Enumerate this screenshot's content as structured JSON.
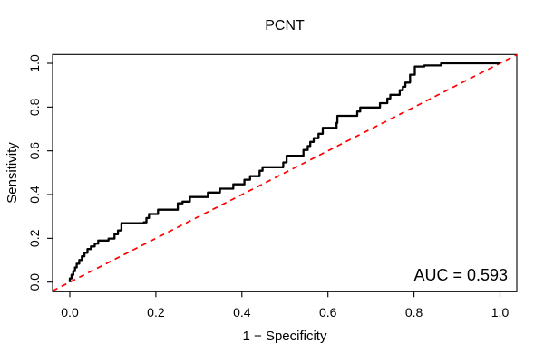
{
  "chart_data": {
    "type": "line",
    "subtype": "roc-step-curve",
    "title": "PCNT",
    "xlabel": "1 − Specificity",
    "ylabel": "Sensitivity",
    "xlim": [
      0.0,
      1.0
    ],
    "ylim": [
      0.0,
      1.0
    ],
    "grid": false,
    "legend": "none",
    "background_color": "#ffffff",
    "box_color": "#000000",
    "x_ticks": [
      "0.0",
      "0.2",
      "0.4",
      "0.6",
      "0.8",
      "1.0"
    ],
    "y_ticks": [
      "0.0",
      "0.2",
      "0.4",
      "0.6",
      "0.8",
      "1.0"
    ],
    "annotation": "AUC = 0.593",
    "auc": 0.593,
    "series": [
      {
        "name": "roc-curve",
        "color": "#000000",
        "line_style": "solid",
        "line_width": 2.3,
        "step": true,
        "points": [
          [
            0.0,
            0.0
          ],
          [
            0.0,
            0.017
          ],
          [
            0.004,
            0.033
          ],
          [
            0.008,
            0.05
          ],
          [
            0.012,
            0.067
          ],
          [
            0.016,
            0.084
          ],
          [
            0.022,
            0.101
          ],
          [
            0.028,
            0.118
          ],
          [
            0.034,
            0.134
          ],
          [
            0.041,
            0.151
          ],
          [
            0.049,
            0.163
          ],
          [
            0.058,
            0.176
          ],
          [
            0.066,
            0.19
          ],
          [
            0.09,
            0.199
          ],
          [
            0.104,
            0.219
          ],
          [
            0.112,
            0.236
          ],
          [
            0.12,
            0.269
          ],
          [
            0.172,
            0.273
          ],
          [
            0.178,
            0.293
          ],
          [
            0.184,
            0.311
          ],
          [
            0.205,
            0.331
          ],
          [
            0.251,
            0.36
          ],
          [
            0.262,
            0.368
          ],
          [
            0.279,
            0.389
          ],
          [
            0.321,
            0.409
          ],
          [
            0.349,
            0.427
          ],
          [
            0.38,
            0.447
          ],
          [
            0.406,
            0.468
          ],
          [
            0.419,
            0.484
          ],
          [
            0.441,
            0.509
          ],
          [
            0.448,
            0.525
          ],
          [
            0.496,
            0.547
          ],
          [
            0.504,
            0.577
          ],
          [
            0.543,
            0.604
          ],
          [
            0.553,
            0.622
          ],
          [
            0.559,
            0.641
          ],
          [
            0.567,
            0.658
          ],
          [
            0.578,
            0.678
          ],
          [
            0.588,
            0.705
          ],
          [
            0.62,
            0.728
          ],
          [
            0.622,
            0.76
          ],
          [
            0.668,
            0.78
          ],
          [
            0.675,
            0.798
          ],
          [
            0.721,
            0.818
          ],
          [
            0.738,
            0.839
          ],
          [
            0.745,
            0.856
          ],
          [
            0.767,
            0.877
          ],
          [
            0.774,
            0.893
          ],
          [
            0.78,
            0.912
          ],
          [
            0.791,
            0.948
          ],
          [
            0.802,
            0.985
          ],
          [
            0.824,
            0.99
          ],
          [
            0.863,
            1.0
          ],
          [
            1.0,
            1.0
          ]
        ]
      },
      {
        "name": "chance-diagonal",
        "color": "#ff0000",
        "line_style": "dashed",
        "line_width": 1.7,
        "step": false,
        "points": [
          [
            0.0,
            0.0
          ],
          [
            1.0,
            1.0
          ]
        ]
      }
    ]
  }
}
